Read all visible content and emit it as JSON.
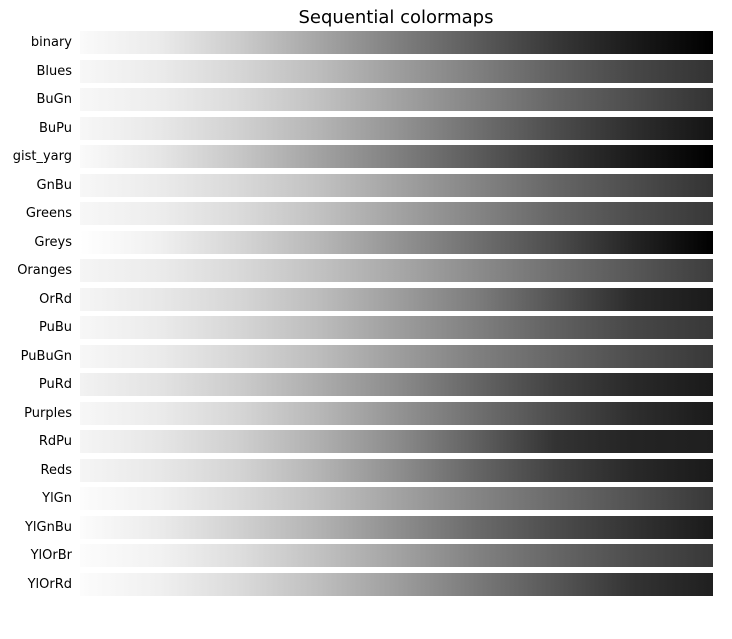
{
  "chart_data": {
    "type": "heatmap",
    "title": "Sequential colormaps",
    "xlabel": "",
    "ylabel": "",
    "axes_visible": false,
    "grid": false,
    "value_range": [
      0,
      1
    ],
    "series": [
      {
        "name": "binary",
        "gray_stops": [
          0.98,
          0.92,
          0.8,
          0.65,
          0.5,
          0.36,
          0.22,
          0.1,
          0.0
        ]
      },
      {
        "name": "Blues",
        "gray_stops": [
          0.97,
          0.92,
          0.84,
          0.74,
          0.62,
          0.5,
          0.38,
          0.28,
          0.2
        ]
      },
      {
        "name": "BuGn",
        "gray_stops": [
          0.97,
          0.93,
          0.86,
          0.76,
          0.64,
          0.52,
          0.4,
          0.3,
          0.2
        ]
      },
      {
        "name": "BuPu",
        "gray_stops": [
          0.97,
          0.91,
          0.82,
          0.71,
          0.58,
          0.44,
          0.3,
          0.18,
          0.08
        ]
      },
      {
        "name": "gist_yarg",
        "gray_stops": [
          0.98,
          0.9,
          0.78,
          0.64,
          0.5,
          0.36,
          0.22,
          0.1,
          0.0
        ]
      },
      {
        "name": "GnBu",
        "gray_stops": [
          0.97,
          0.92,
          0.85,
          0.76,
          0.64,
          0.52,
          0.4,
          0.3,
          0.2
        ]
      },
      {
        "name": "Greens",
        "gray_stops": [
          0.97,
          0.93,
          0.86,
          0.76,
          0.64,
          0.52,
          0.4,
          0.3,
          0.22
        ]
      },
      {
        "name": "Greys",
        "gray_stops": [
          1.0,
          0.94,
          0.84,
          0.72,
          0.58,
          0.44,
          0.3,
          0.14,
          0.0
        ]
      },
      {
        "name": "Oranges",
        "gray_stops": [
          0.96,
          0.92,
          0.85,
          0.76,
          0.66,
          0.55,
          0.44,
          0.34,
          0.24
        ]
      },
      {
        "name": "OrRd",
        "gray_stops": [
          0.96,
          0.91,
          0.84,
          0.74,
          0.62,
          0.49,
          0.33,
          0.17,
          0.1
        ]
      },
      {
        "name": "PuBu",
        "gray_stops": [
          0.97,
          0.92,
          0.84,
          0.74,
          0.62,
          0.5,
          0.38,
          0.28,
          0.22
        ]
      },
      {
        "name": "PuBuGn",
        "gray_stops": [
          0.97,
          0.92,
          0.84,
          0.74,
          0.62,
          0.5,
          0.4,
          0.3,
          0.22
        ]
      },
      {
        "name": "PuRd",
        "gray_stops": [
          0.95,
          0.89,
          0.8,
          0.68,
          0.55,
          0.4,
          0.26,
          0.16,
          0.1
        ]
      },
      {
        "name": "Purples",
        "gray_stops": [
          0.97,
          0.92,
          0.84,
          0.72,
          0.58,
          0.44,
          0.3,
          0.18,
          0.1
        ]
      },
      {
        "name": "RdPu",
        "gray_stops": [
          0.96,
          0.9,
          0.81,
          0.69,
          0.55,
          0.38,
          0.2,
          0.14,
          0.12
        ]
      },
      {
        "name": "Reds",
        "gray_stops": [
          0.96,
          0.91,
          0.83,
          0.71,
          0.56,
          0.4,
          0.26,
          0.16,
          0.1
        ]
      },
      {
        "name": "YlGn",
        "gray_stops": [
          0.99,
          0.94,
          0.86,
          0.76,
          0.64,
          0.52,
          0.42,
          0.32,
          0.22
        ]
      },
      {
        "name": "YlGnBu",
        "gray_stops": [
          0.99,
          0.92,
          0.82,
          0.7,
          0.56,
          0.42,
          0.3,
          0.2,
          0.1
        ]
      },
      {
        "name": "YlOrBr",
        "gray_stops": [
          0.99,
          0.95,
          0.87,
          0.76,
          0.64,
          0.51,
          0.4,
          0.3,
          0.22
        ]
      },
      {
        "name": "YlOrRd",
        "gray_stops": [
          0.99,
          0.94,
          0.86,
          0.75,
          0.62,
          0.48,
          0.34,
          0.2,
          0.12
        ]
      }
    ]
  }
}
